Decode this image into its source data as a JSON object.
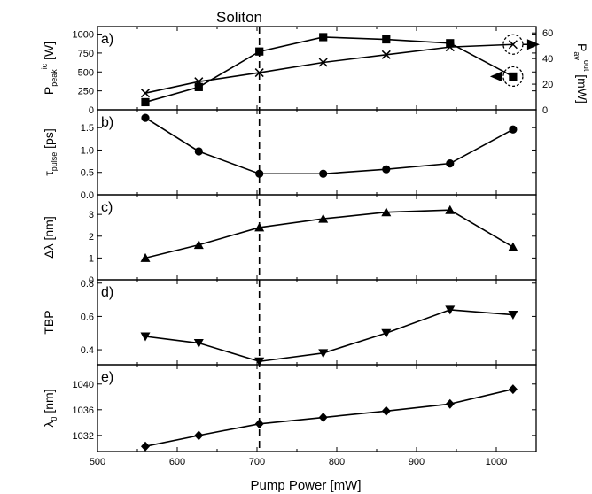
{
  "figure": {
    "title": "Soliton",
    "x_title": "Pump Power [mW]",
    "right_axis_title": "P_av^out [mW]"
  },
  "chart_data": [
    {
      "id": "a",
      "type": "line",
      "panel_label": "a)",
      "ylabel": "P_peak^ic [W]",
      "xlim": [
        500,
        1050
      ],
      "ylim": [
        0,
        1100
      ],
      "yticks": [
        0,
        250,
        500,
        750,
        1000
      ],
      "y2lim": [
        0,
        65
      ],
      "y2ticks": [
        0,
        20,
        40,
        60
      ],
      "x": [
        560,
        627,
        703,
        783,
        862,
        942,
        1021
      ],
      "series": [
        {
          "marker": "square",
          "axis": "left",
          "values": [
            100,
            300,
            770,
            960,
            930,
            880,
            440
          ]
        },
        {
          "marker": "x",
          "axis": "right",
          "values": [
            13,
            22,
            29,
            37,
            43,
            49,
            51
          ]
        }
      ],
      "annotations": [
        {
          "type": "circled-marker-arrow",
          "marker": "square",
          "x": 1021,
          "y": 440,
          "direction": "left"
        },
        {
          "type": "circled-marker-arrow",
          "marker": "x",
          "x": 1021,
          "y": 51,
          "axis": "right",
          "direction": "right"
        }
      ]
    },
    {
      "id": "b",
      "type": "line",
      "panel_label": "b)",
      "ylabel": "τ_pulse [ps]",
      "xlim": [
        500,
        1050
      ],
      "ylim": [
        0,
        1.9
      ],
      "yticks": [
        0.0,
        0.5,
        1.0,
        1.5
      ],
      "x": [
        560,
        627,
        703,
        783,
        862,
        942,
        1021
      ],
      "series": [
        {
          "marker": "circle",
          "values": [
            1.72,
            0.97,
            0.47,
            0.47,
            0.57,
            0.7,
            1.46
          ]
        }
      ]
    },
    {
      "id": "c",
      "type": "line",
      "panel_label": "c)",
      "ylabel": "Δλ [nm]",
      "xlim": [
        500,
        1050
      ],
      "ylim": [
        0,
        3.9
      ],
      "yticks": [
        0,
        1,
        2,
        3
      ],
      "x": [
        560,
        627,
        703,
        783,
        862,
        942,
        1021
      ],
      "series": [
        {
          "marker": "triangle-up",
          "values": [
            1.0,
            1.6,
            2.4,
            2.8,
            3.1,
            3.2,
            1.5
          ]
        }
      ]
    },
    {
      "id": "d",
      "type": "line",
      "panel_label": "d)",
      "ylabel": "TBP",
      "xlim": [
        500,
        1050
      ],
      "ylim": [
        0.31,
        0.82
      ],
      "yticks": [
        0.4,
        0.6,
        0.8
      ],
      "x": [
        560,
        627,
        703,
        783,
        862,
        942,
        1021
      ],
      "series": [
        {
          "marker": "triangle-down",
          "values": [
            0.48,
            0.44,
            0.33,
            0.38,
            0.5,
            0.64,
            0.61
          ]
        }
      ]
    },
    {
      "id": "e",
      "type": "line",
      "panel_label": "e)",
      "ylabel": "λ_0 [nm]",
      "xlim": [
        500,
        1050
      ],
      "xticks": [
        500,
        600,
        700,
        800,
        900,
        1000
      ],
      "ylim": [
        1029.5,
        1043
      ],
      "yticks": [
        1032,
        1036,
        1040
      ],
      "x": [
        560,
        627,
        703,
        783,
        862,
        942,
        1021
      ],
      "series": [
        {
          "marker": "diamond",
          "values": [
            1030.3,
            1032.0,
            1033.8,
            1034.8,
            1035.8,
            1036.9,
            1039.2
          ]
        }
      ]
    }
  ],
  "reference_line": {
    "x": 703,
    "style": "dashed"
  }
}
